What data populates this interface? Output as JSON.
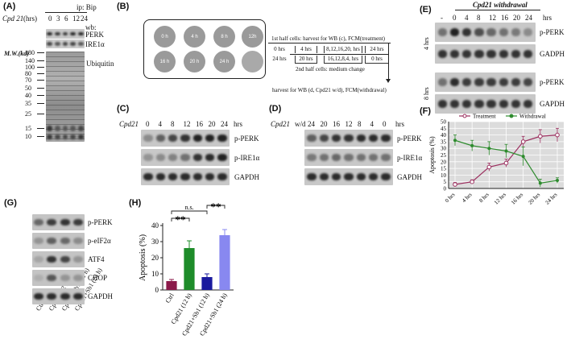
{
  "panelA": {
    "label": "(A)",
    "ip_label": "ip: Bip",
    "drug": "Cpd 21",
    "time_unit": "(hrs)",
    "times": [
      "0",
      "3",
      "6",
      "12",
      "24"
    ],
    "wb_label": "wb:",
    "rows": [
      "PERK",
      "IRE1α"
    ],
    "mw_label": "M.W.(kd)",
    "mw_ladder": [
      "180",
      "140",
      "100",
      "80",
      "70",
      "50",
      "40",
      "35",
      "25",
      "15",
      "10"
    ],
    "ubiquitin_label": "Ubiquitin"
  },
  "panelB": {
    "label": "(B)",
    "dishes": [
      "0 h",
      "4 h",
      "8 h",
      "12h",
      "16 h",
      "20 h",
      "24 h",
      ""
    ],
    "first_half": "1st half cells: harvest for WB (c), FCM(treatment)",
    "row1_times": [
      "0 hrs",
      "4 hrs",
      "8,12,16,20, hrs",
      "24 hrs"
    ],
    "row2_times": [
      "24 hrs",
      "20 hrs",
      "16,12,8,4, hrs",
      "0 hrs"
    ],
    "second_half": "2nd half cells: medium change",
    "harvest": "harvest for WB (d, Cpd21 w/d), FCM(withdrawal)"
  },
  "panelC": {
    "label": "(C)",
    "drug": "Cpd21",
    "times": [
      "0",
      "4",
      "8",
      "12",
      "16",
      "20",
      "24"
    ],
    "unit": "hrs",
    "rows": [
      "p-PERK",
      "p-IRE1α",
      "GAPDH"
    ]
  },
  "panelD": {
    "label": "(D)",
    "drug": "Cpd21",
    "wd": "w/d",
    "times": [
      "24",
      "20",
      "16",
      "12",
      "8",
      "4",
      "0"
    ],
    "unit": "hrs",
    "rows": [
      "p-PERK",
      "p-IRE1α",
      "GAPDH"
    ]
  },
  "panelE": {
    "label": "(E)",
    "title": "Cpd21 withdrawal",
    "times": [
      "-",
      "0",
      "4",
      "8",
      "12",
      "16",
      "20",
      "24"
    ],
    "unit": "hrs",
    "group1": "4 hrs",
    "group2": "8 hrs",
    "rows": [
      "p-PERK",
      "GADPH",
      "p-PERK",
      "GAPDH"
    ]
  },
  "panelF": {
    "label": "(F)",
    "chart_data": {
      "type": "line",
      "categories": [
        "0 hrs",
        "4 hrs",
        "8 hrs",
        "12 hrs",
        "16 hrs",
        "20 hrs",
        "24 hrs"
      ],
      "ylabel": "Apoptosis (%)",
      "ylim": [
        0,
        50
      ],
      "yticks": [
        "0",
        "5",
        "10",
        "15",
        "20",
        "25",
        "30",
        "35",
        "40",
        "45",
        "50"
      ],
      "legend_position": "top",
      "grid": true,
      "series": [
        {
          "name": "Treatment",
          "color": "#9b2e5e",
          "values": [
            3,
            5,
            16,
            19,
            35,
            39,
            40
          ],
          "errors": [
            1.5,
            1.5,
            3,
            3,
            4,
            5,
            5
          ]
        },
        {
          "name": "Withdrawal",
          "color": "#2e8b2e",
          "values": [
            36,
            32,
            30,
            28,
            24,
            4,
            6
          ],
          "errors": [
            4,
            4,
            5,
            5,
            7,
            3,
            2
          ]
        }
      ]
    }
  },
  "panelG": {
    "label": "(G)",
    "rows": [
      "p-PERK",
      "p-eIF2α",
      "ATF4",
      "CHOP",
      "GAPDH"
    ],
    "lanes": [
      "Ctrl",
      "Cpd21 (12 h)",
      "Cpd21+Sb1 (12 h)",
      "Cpd21+Sb1 (24 h)"
    ]
  },
  "panelH": {
    "label": "(H)",
    "chart_data": {
      "type": "bar",
      "categories": [
        "Ctrl",
        "Cpd21 (12 h)",
        "Cpd21+Sb1 (12 h)",
        "Cpd21+Sb1 (24 h)"
      ],
      "values": [
        5.5,
        26,
        8,
        34
      ],
      "errors": [
        1,
        4.5,
        2,
        3.5
      ],
      "colors": [
        "#8b1a4a",
        "#1e8c2a",
        "#1a1a9e",
        "#8888f0"
      ],
      "ylabel": "Apoptosis (%)",
      "ylim": [
        0,
        40
      ],
      "yticks": [
        "0",
        "10",
        "20",
        "30",
        "40"
      ],
      "annotations": [
        "**",
        "n.s.",
        "**"
      ]
    }
  }
}
